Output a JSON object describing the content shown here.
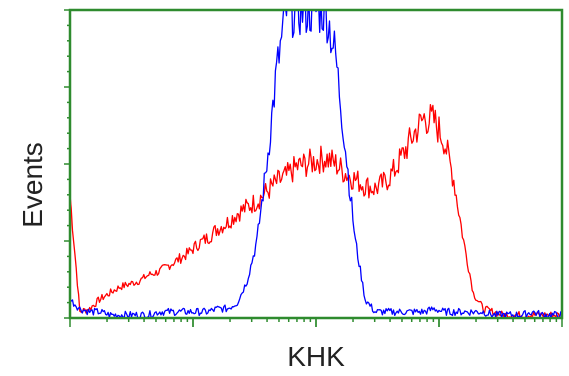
{
  "chart_data": {
    "type": "line",
    "title": "",
    "xlabel": "KHK",
    "ylabel": "Events",
    "xlim": [
      0,
      100
    ],
    "ylim": [
      0,
      100
    ],
    "x_scale": "log",
    "grid": false,
    "legend": "none",
    "frame_color": "#2e8b2e",
    "series": [
      {
        "color": "#ff0000",
        "x": [
          0,
          2,
          4,
          6,
          8,
          10,
          12,
          14,
          16,
          18,
          20,
          22,
          24,
          26,
          28,
          30,
          32,
          34,
          36,
          38,
          40,
          42,
          44,
          46,
          48,
          50,
          52,
          54,
          56,
          58,
          60,
          62,
          64,
          66,
          68,
          70,
          72,
          74,
          76,
          78,
          80,
          82,
          84,
          86,
          88,
          90,
          92,
          94,
          96,
          98,
          100
        ],
        "y": [
          40,
          2,
          3,
          6,
          8,
          10,
          11,
          12,
          14,
          15,
          17,
          19,
          21,
          24,
          26,
          29,
          31,
          34,
          36,
          38,
          41,
          44,
          46,
          49,
          50,
          51,
          52,
          50,
          47,
          45,
          43,
          42,
          44,
          48,
          54,
          60,
          65,
          64,
          58,
          45,
          25,
          8,
          3,
          2,
          1,
          1,
          1,
          1,
          1,
          1,
          1
        ]
      },
      {
        "color": "#0000ff",
        "x": [
          0,
          2,
          4,
          6,
          8,
          10,
          12,
          14,
          16,
          18,
          20,
          22,
          24,
          26,
          28,
          30,
          32,
          34,
          36,
          38,
          40,
          42,
          44,
          46,
          48,
          50,
          52,
          54,
          56,
          58,
          60,
          62,
          64,
          66,
          68,
          70,
          72,
          74,
          76,
          78,
          80,
          82,
          84,
          86,
          88,
          90,
          92,
          94,
          96,
          98,
          100
        ],
        "y": [
          6,
          3,
          2,
          2,
          1,
          1,
          1,
          1,
          1,
          2,
          2,
          2,
          2,
          2,
          2,
          3,
          3,
          5,
          12,
          25,
          50,
          80,
          100,
          100,
          100,
          100,
          100,
          85,
          55,
          25,
          6,
          2,
          2,
          2,
          2,
          2,
          2,
          3,
          2,
          2,
          2,
          2,
          2,
          1,
          1,
          1,
          1,
          2,
          1,
          1,
          1
        ]
      }
    ]
  }
}
